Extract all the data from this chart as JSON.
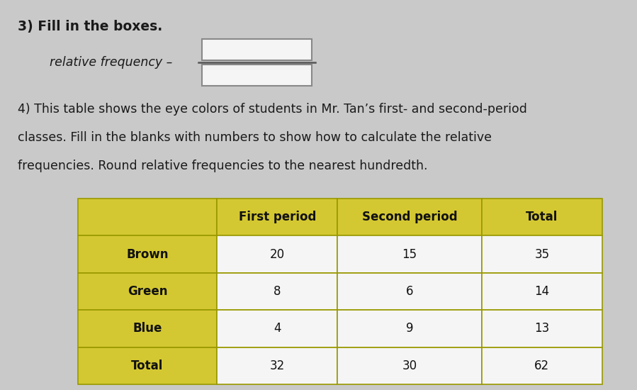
{
  "bg_color": "#c9c9c9",
  "title3": "3) Fill in the boxes.",
  "rel_freq_label": "relative frequency –",
  "title4_line1": "4) This table shows the eye colors of students in Mr. Tan’s first- and second-period",
  "title4_line2": "classes. Fill in the blanks with numbers to show how to calculate the relative",
  "title4_line3": "frequencies. Round relative frequencies to the nearest hundredth.",
  "header_row": [
    "",
    "First period",
    "Second period",
    "Total"
  ],
  "rows": [
    [
      "Brown",
      "20",
      "15",
      "35"
    ],
    [
      "Green",
      "8",
      "6",
      "14"
    ],
    [
      "Blue",
      "4",
      "9",
      "13"
    ],
    [
      "Total",
      "32",
      "30",
      "62"
    ]
  ],
  "yellow_color": "#D4C832",
  "white_color": "#F5F5F5",
  "text_color": "#1a1a1a",
  "font_size_title": 13.5,
  "font_size_body": 12.5,
  "font_size_table_header": 12,
  "font_size_table_body": 12
}
